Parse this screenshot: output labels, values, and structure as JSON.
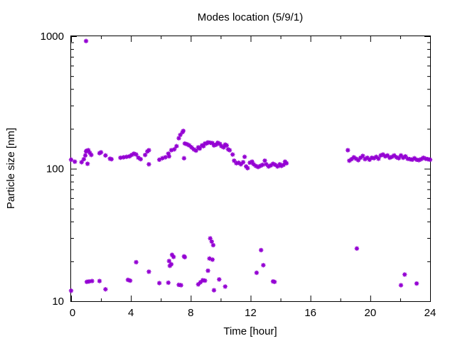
{
  "chart_data": {
    "type": "scatter",
    "title": "Modes location (5/9/1)",
    "xlabel": "Time [hour]",
    "ylabel": "Particle size [nm]",
    "xlim": [
      0,
      24
    ],
    "ylim": [
      10,
      1000
    ],
    "yscale": "log",
    "grid": false,
    "legend": "none",
    "marker_color": "#9400d3",
    "x_ticks": [
      0,
      4,
      8,
      12,
      16,
      20,
      24
    ],
    "x_tick_labels": [
      "0",
      "4",
      "8",
      "12",
      "16",
      "20",
      "24"
    ],
    "y_ticks": [
      10,
      100,
      1000
    ],
    "y_tick_labels": [
      "10",
      "100",
      "1000"
    ],
    "series": [
      {
        "points": [
          [
            0,
            117
          ],
          [
            0.25,
            113
          ],
          [
            0.7,
            112
          ],
          [
            0.85,
            118
          ],
          [
            0.95,
            126
          ],
          [
            1.0,
            135
          ],
          [
            1.05,
            137
          ],
          [
            1.1,
            109
          ],
          [
            1.15,
            138
          ],
          [
            1.25,
            132
          ],
          [
            1.35,
            127
          ],
          [
            1.9,
            131
          ],
          [
            2.0,
            133
          ],
          [
            2.3,
            126
          ],
          [
            2.6,
            119
          ],
          [
            2.7,
            118
          ],
          [
            3.3,
            121
          ],
          [
            3.5,
            122
          ],
          [
            3.7,
            123
          ],
          [
            3.9,
            124
          ],
          [
            4.05,
            127
          ],
          [
            4.2,
            130
          ],
          [
            4.35,
            128
          ],
          [
            4.5,
            121
          ],
          [
            4.65,
            118
          ],
          [
            4.95,
            127
          ],
          [
            5.1,
            135
          ],
          [
            5.2,
            138
          ],
          [
            5.2,
            108
          ],
          [
            5.9,
            117
          ],
          [
            6.1,
            120
          ],
          [
            6.3,
            122
          ],
          [
            6.5,
            130
          ],
          [
            6.55,
            124
          ],
          [
            6.7,
            138
          ],
          [
            6.9,
            140
          ],
          [
            7.05,
            148
          ],
          [
            7.2,
            170
          ],
          [
            7.3,
            180
          ],
          [
            7.45,
            189
          ],
          [
            7.5,
            193
          ],
          [
            7.55,
            120
          ],
          [
            7.6,
            155
          ],
          [
            7.75,
            153
          ],
          [
            7.9,
            150
          ],
          [
            8.05,
            145
          ],
          [
            8.2,
            140
          ],
          [
            8.35,
            137
          ],
          [
            8.5,
            145
          ],
          [
            8.6,
            142
          ],
          [
            8.75,
            150
          ],
          [
            8.85,
            148
          ],
          [
            8.95,
            155
          ],
          [
            9.05,
            155
          ],
          [
            9.15,
            158
          ],
          [
            9.3,
            157
          ],
          [
            9.45,
            156
          ],
          [
            9.55,
            150
          ],
          [
            9.7,
            152
          ],
          [
            9.8,
            157
          ],
          [
            9.95,
            154
          ],
          [
            10.05,
            148
          ],
          [
            10.2,
            145
          ],
          [
            10.3,
            152
          ],
          [
            10.4,
            150
          ],
          [
            10.5,
            140
          ],
          [
            10.6,
            138
          ],
          [
            10.8,
            128
          ],
          [
            10.9,
            115
          ],
          [
            11.05,
            110
          ],
          [
            11.2,
            111
          ],
          [
            11.35,
            108
          ],
          [
            11.5,
            112
          ],
          [
            11.6,
            123
          ],
          [
            11.7,
            104
          ],
          [
            11.8,
            101
          ],
          [
            11.95,
            111
          ],
          [
            12.1,
            113
          ],
          [
            12.2,
            108
          ],
          [
            12.35,
            105
          ],
          [
            12.5,
            103
          ],
          [
            12.65,
            105
          ],
          [
            12.8,
            107
          ],
          [
            12.95,
            115
          ],
          [
            13.05,
            108
          ],
          [
            13.2,
            104
          ],
          [
            13.35,
            106
          ],
          [
            13.5,
            109
          ],
          [
            13.65,
            107
          ],
          [
            13.8,
            104
          ],
          [
            13.95,
            108
          ],
          [
            14.05,
            105
          ],
          [
            14.2,
            107
          ],
          [
            14.3,
            113
          ],
          [
            14.4,
            110
          ],
          [
            18.5,
            138
          ],
          [
            18.6,
            115
          ],
          [
            18.75,
            118
          ],
          [
            18.9,
            122
          ],
          [
            19.05,
            119
          ],
          [
            19.2,
            116
          ],
          [
            19.35,
            121
          ],
          [
            19.5,
            125
          ],
          [
            19.65,
            118
          ],
          [
            19.8,
            121
          ],
          [
            19.95,
            117
          ],
          [
            20.1,
            121
          ],
          [
            20.25,
            120
          ],
          [
            20.4,
            123
          ],
          [
            20.55,
            119
          ],
          [
            20.7,
            126
          ],
          [
            20.85,
            128
          ],
          [
            21.0,
            124
          ],
          [
            21.15,
            126
          ],
          [
            21.3,
            121
          ],
          [
            21.45,
            123
          ],
          [
            21.6,
            126
          ],
          [
            21.75,
            122
          ],
          [
            21.9,
            120
          ],
          [
            22.05,
            126
          ],
          [
            22.2,
            121
          ],
          [
            22.35,
            124
          ],
          [
            22.5,
            119
          ],
          [
            22.65,
            118
          ],
          [
            22.8,
            117
          ],
          [
            22.95,
            120
          ],
          [
            23.1,
            117
          ],
          [
            23.25,
            116
          ],
          [
            23.4,
            118
          ],
          [
            23.55,
            121
          ],
          [
            23.7,
            119
          ],
          [
            23.85,
            118
          ],
          [
            24,
            117
          ],
          [
            1.0,
            920
          ],
          [
            0,
            12
          ],
          [
            1.05,
            14
          ],
          [
            1.2,
            14.1
          ],
          [
            1.4,
            14.2
          ],
          [
            1.9,
            14.2
          ],
          [
            2.3,
            12.3
          ],
          [
            3.8,
            14.5
          ],
          [
            3.95,
            14.3
          ],
          [
            4.35,
            19.7
          ],
          [
            5.2,
            16.7
          ],
          [
            5.9,
            13.7
          ],
          [
            6.5,
            13.8
          ],
          [
            6.55,
            20.1
          ],
          [
            6.6,
            18.5
          ],
          [
            6.7,
            19
          ],
          [
            6.75,
            22.4
          ],
          [
            6.85,
            21.6
          ],
          [
            7.2,
            13.3
          ],
          [
            7.35,
            13.2
          ],
          [
            7.55,
            21.8
          ],
          [
            7.6,
            21.5
          ],
          [
            8.5,
            13.4
          ],
          [
            8.65,
            13.9
          ],
          [
            8.8,
            14.4
          ],
          [
            8.95,
            14.3
          ],
          [
            9.15,
            17
          ],
          [
            9.25,
            21
          ],
          [
            9.3,
            29.8
          ],
          [
            9.4,
            28.2
          ],
          [
            9.45,
            20.6
          ],
          [
            9.5,
            26.5
          ],
          [
            9.55,
            12.1
          ],
          [
            9.9,
            14.6
          ],
          [
            10.3,
            12.9
          ],
          [
            12.4,
            16.4
          ],
          [
            12.7,
            24.3
          ],
          [
            12.85,
            18.7
          ],
          [
            13.5,
            14.1
          ],
          [
            13.6,
            14
          ],
          [
            19.1,
            25
          ],
          [
            22.05,
            13.2
          ],
          [
            22.3,
            15.9
          ],
          [
            23.1,
            13.6
          ]
        ]
      }
    ]
  }
}
